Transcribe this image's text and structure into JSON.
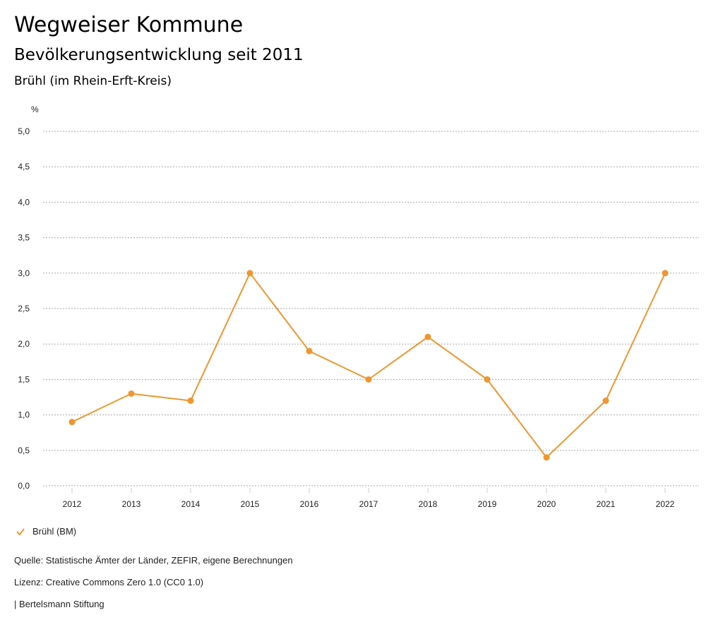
{
  "header": {
    "title": "Wegweiser Kommune",
    "subtitle": "Bevölkerungsentwicklung seit 2011",
    "region": "Brühl (im Rhein-Erft-Kreis)"
  },
  "chart_data": {
    "type": "line",
    "title": "Bevölkerungsentwicklung seit 2011",
    "ylabel": "%",
    "xlabel": "",
    "ylim": [
      0,
      5
    ],
    "yticks": [
      "0,0",
      "0,5",
      "1,0",
      "1,5",
      "2,0",
      "2,5",
      "3,0",
      "3,5",
      "4,0",
      "4,5",
      "5,0"
    ],
    "x": [
      "2012",
      "2013",
      "2014",
      "2015",
      "2016",
      "2017",
      "2018",
      "2019",
      "2020",
      "2021",
      "2022"
    ],
    "series": [
      {
        "name": "Brühl (BM)",
        "color": "#f0962e",
        "values": [
          0.9,
          1.3,
          1.2,
          3.0,
          1.9,
          1.5,
          2.1,
          1.5,
          0.4,
          1.2,
          3.0
        ]
      }
    ],
    "grid": true,
    "legend": "bottom-left"
  },
  "footer": {
    "source": "Quelle: Statistische Ämter der Länder, ZEFIR, eigene Berechnungen",
    "license": "Lizenz: Creative Commons Zero 1.0 (CC0 1.0)",
    "credit": "| Bertelsmann Stiftung"
  }
}
